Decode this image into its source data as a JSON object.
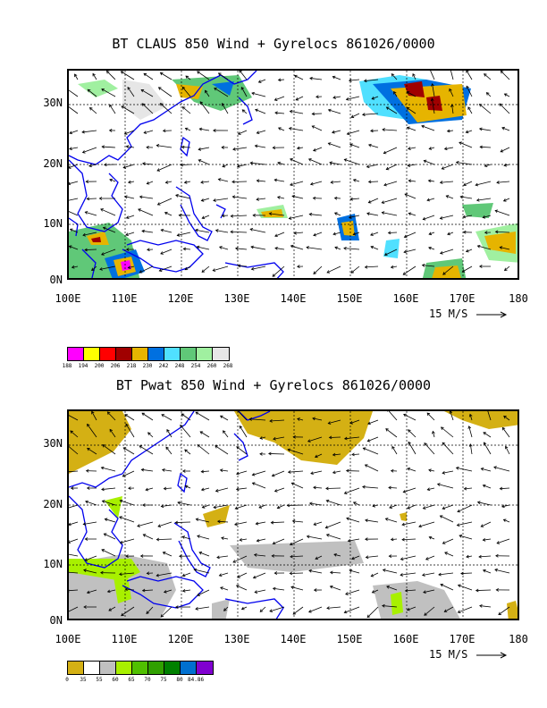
{
  "panels": [
    {
      "title": "BT CLAUS 850 Wind + Gyrelocs 861026/0000",
      "lat_labels": [
        "30N",
        "20N",
        "10N",
        "0N"
      ],
      "lon_labels": [
        "100E",
        "110E",
        "120E",
        "130E",
        "140E",
        "150E",
        "160E",
        "170E",
        "180"
      ],
      "scale_label": "15 M/S",
      "colorbar_colors": [
        "#ff00ff",
        "#ffff00",
        "#ff0000",
        "#a00000",
        "#e6b400",
        "#0070e0",
        "#50e0ff",
        "#60c878",
        "#a0f0a0",
        "#e6e6e6"
      ],
      "colorbar_labels": [
        "188",
        "194",
        "200",
        "206",
        "218",
        "230",
        "242",
        "248",
        "254",
        "260",
        "268"
      ]
    },
    {
      "title": "BT Pwat 850 Wind + Gyrelocs 861026/0000",
      "lat_labels": [
        "30N",
        "20N",
        "10N",
        "0N"
      ],
      "lon_labels": [
        "100E",
        "110E",
        "120E",
        "130E",
        "140E",
        "150E",
        "160E",
        "170E",
        "180"
      ],
      "scale_label": "15 M/S",
      "colorbar_colors": [
        "#d4b014",
        "#ffffff",
        "#c0c0c0",
        "#a8f000",
        "#50c000",
        "#30a000",
        "#008000",
        "#0070d0",
        "#8000d0"
      ],
      "colorbar_labels": [
        "0",
        "35",
        "55",
        "60",
        "65",
        "70",
        "75",
        "80",
        "84.86"
      ]
    }
  ]
}
